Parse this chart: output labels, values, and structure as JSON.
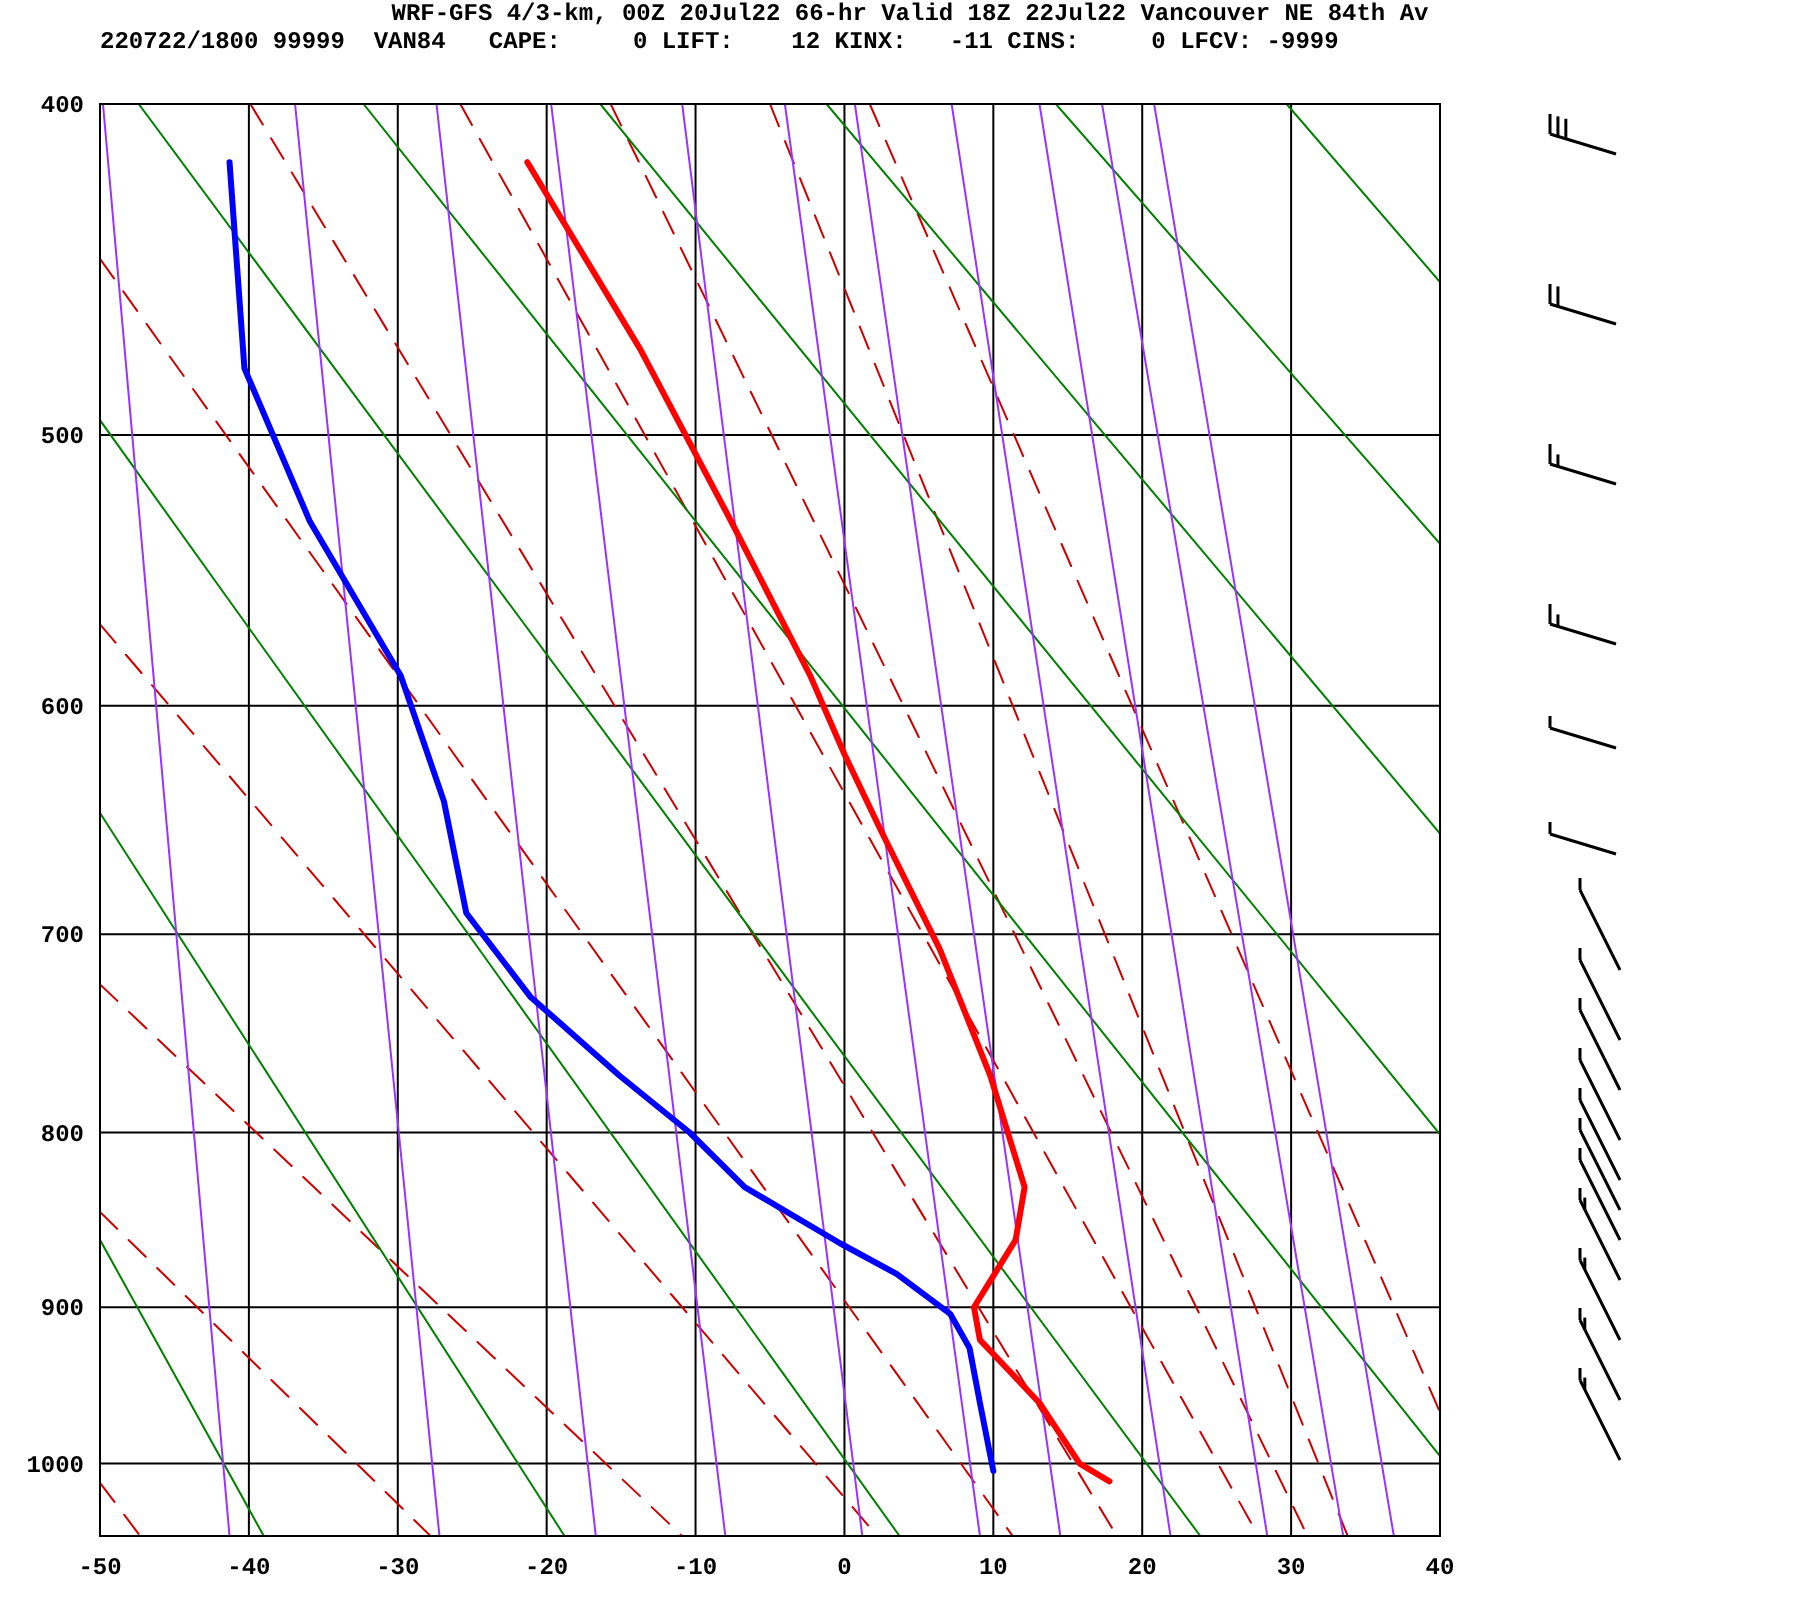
{
  "chart_data": {
    "type": "line",
    "title": "WRF-GFS 4/3-km, 00Z 20Jul22 66-hr Valid 18Z 22Jul22 Vancouver NE 84th Av",
    "subtitle": "220722/1800 99999  VAN84   CAPE:     0 LIFT:    12 KINX:   -11 CINS:     0 LFCV: -9999",
    "xlim": [
      -50,
      40
    ],
    "xticks": [
      -50,
      -40,
      -30,
      -20,
      -10,
      0,
      10,
      20,
      30,
      40
    ],
    "ylim": [
      1050,
      400
    ],
    "yticks": [
      400,
      500,
      600,
      700,
      800,
      900,
      1000
    ],
    "grid": true,
    "log": true,
    "series": [
      {
        "color": "#ff0000",
        "x": [
          -21.3,
          -13.7,
          -7.7,
          -2.3,
          0.0,
          2.4,
          6.4,
          9.8,
          12.1,
          11.5,
          8.7,
          9.1,
          13.1,
          15.8,
          17.8
        ],
        "values": [
          416,
          472,
          529,
          588,
          620,
          652,
          707,
          770,
          830,
          860,
          900,
          920,
          960,
          1000,
          1012
        ]
      },
      {
        "color": "#0000ff",
        "x": [
          -41.3,
          -40.3,
          -35.9,
          -29.8,
          -26.9,
          -25.4,
          -21.1,
          -15.1,
          -10.4,
          -6.7,
          -0.3,
          3.5,
          7.1,
          8.4,
          9.1,
          10.0
        ],
        "values": [
          416,
          478,
          530,
          588,
          640,
          690,
          730,
          770,
          800,
          830,
          862,
          880,
          904,
          925,
          960,
          1005
        ]
      },
      {
        "color": "#9933ff",
        "x": [
          -49.8,
          -41.3
        ],
        "values": [
          400,
          1050
        ]
      },
      {
        "color": "#9933ff",
        "x": [
          -36.9,
          -27.2
        ],
        "values": [
          400,
          1050
        ]
      },
      {
        "color": "#9933ff",
        "x": [
          -27.4,
          -16.7
        ],
        "values": [
          400,
          1050
        ]
      },
      {
        "color": "#9933ff",
        "x": [
          -19.7,
          -8.0
        ],
        "values": [
          400,
          1050
        ]
      },
      {
        "color": "#9933ff",
        "x": [
          -10.9,
          1.2
        ],
        "values": [
          400,
          1050
        ]
      },
      {
        "color": "#9933ff",
        "x": [
          -4.0,
          9.1
        ],
        "values": [
          400,
          1050
        ]
      },
      {
        "color": "#9933ff",
        "x": [
          0.7,
          14.5
        ],
        "values": [
          400,
          1050
        ]
      },
      {
        "color": "#9933ff",
        "x": [
          7.2,
          21.9
        ],
        "values": [
          400,
          1050
        ]
      },
      {
        "color": "#9933ff",
        "x": [
          13.1,
          28.4
        ],
        "values": [
          400,
          1050
        ]
      },
      {
        "color": "#9933ff",
        "x": [
          17.3,
          33.5
        ],
        "values": [
          400,
          1050
        ]
      },
      {
        "color": "#9933ff",
        "x": [
          20.8,
          36.9
        ],
        "values": [
          400,
          1050
        ]
      },
      {
        "color": "#008000",
        "x": [
          29.7,
          40
        ],
        "values": [
          400,
          451
        ]
      },
      {
        "color": "#008000",
        "x": [
          14.2,
          40
        ],
        "values": [
          400,
          538
        ]
      },
      {
        "color": "#008000",
        "x": [
          -1.2,
          40
        ],
        "values": [
          400,
          654
        ]
      },
      {
        "color": "#008000",
        "x": [
          -16.4,
          40
        ],
        "values": [
          400,
          801
        ]
      },
      {
        "color": "#008000",
        "x": [
          -32.3,
          40
        ],
        "values": [
          400,
          995
        ]
      },
      {
        "color": "#008000",
        "x": [
          -47.4,
          23.9
        ],
        "values": [
          400,
          1050
        ]
      },
      {
        "color": "#008000",
        "x": [
          -50,
          3.7
        ],
        "values": [
          495,
          1050
        ]
      },
      {
        "color": "#008000",
        "x": [
          -50,
          -18.8
        ],
        "values": [
          645,
          1050
        ]
      },
      {
        "color": "#008000",
        "x": [
          -50,
          -39.0
        ],
        "values": [
          860,
          1050
        ]
      },
      {
        "color": "#cc0000",
        "line_style": "dashed",
        "x": [
          -50,
          -47.3
        ],
        "values": [
          1013,
          1050
        ]
      },
      {
        "color": "#cc0000",
        "line_style": "dashed",
        "x": [
          -50,
          -27.8
        ],
        "values": [
          844,
          1050
        ]
      },
      {
        "color": "#cc0000",
        "line_style": "dashed",
        "x": [
          -50,
          -10.9
        ],
        "values": [
          724,
          1050
        ]
      },
      {
        "color": "#cc0000",
        "line_style": "dashed",
        "x": [
          -50,
          2.2
        ],
        "values": [
          568,
          1050
        ]
      },
      {
        "color": "#cc0000",
        "line_style": "dashed",
        "x": [
          -50,
          11.3
        ],
        "values": [
          444,
          1050
        ]
      },
      {
        "color": "#cc0000",
        "line_style": "dashed",
        "x": [
          -39.9,
          18.3
        ],
        "values": [
          400,
          1050
        ]
      },
      {
        "color": "#cc0000",
        "line_style": "dashed",
        "x": [
          -25.8,
          27.8
        ],
        "values": [
          400,
          1050
        ]
      },
      {
        "color": "#cc0000",
        "line_style": "dashed",
        "x": [
          -15.7,
          31.1
        ],
        "values": [
          400,
          1050
        ]
      },
      {
        "color": "#cc0000",
        "line_style": "dashed",
        "x": [
          -5.0,
          33.8
        ],
        "values": [
          400,
          1050
        ]
      },
      {
        "color": "#cc0000",
        "line_style": "dashed",
        "x": [
          1.7,
          40
        ],
        "values": [
          400,
          966
        ]
      }
    ]
  }
}
